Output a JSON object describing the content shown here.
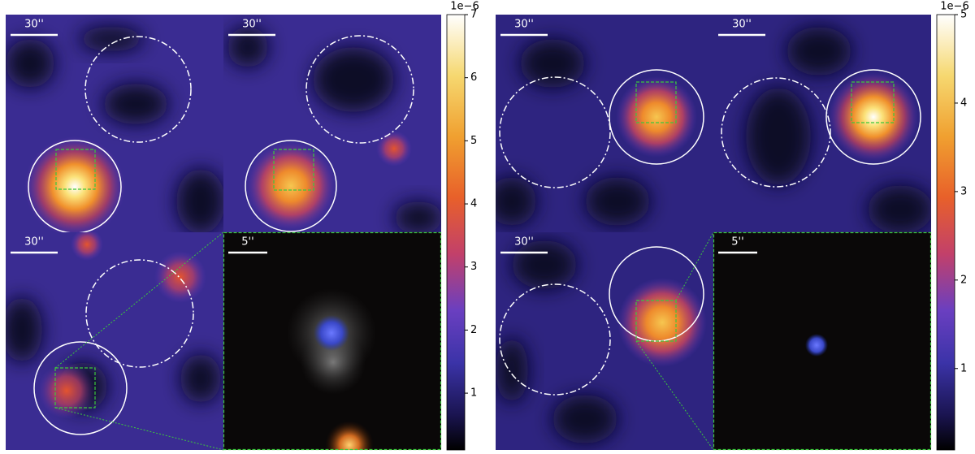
{
  "figures": [
    {
      "panels": [
        {
          "scale_label": "30''"
        },
        {
          "scale_label": "30''"
        },
        {
          "scale_label": "30''"
        },
        {
          "scale_label": "5''"
        }
      ],
      "colorbar": {
        "exponent_label": "1e−6",
        "lim": [
          0.1,
          7
        ],
        "ticks": [
          1,
          2,
          3,
          4,
          5,
          6,
          7
        ]
      }
    },
    {
      "panels": [
        {
          "scale_label": "30''"
        },
        {
          "scale_label": "30''"
        },
        {
          "scale_label": "30''"
        },
        {
          "scale_label": "5''"
        }
      ],
      "colorbar": {
        "exponent_label": "1e−6",
        "lim": [
          0.08,
          5
        ],
        "ticks": [
          1,
          2,
          3,
          4,
          5
        ]
      }
    }
  ]
}
